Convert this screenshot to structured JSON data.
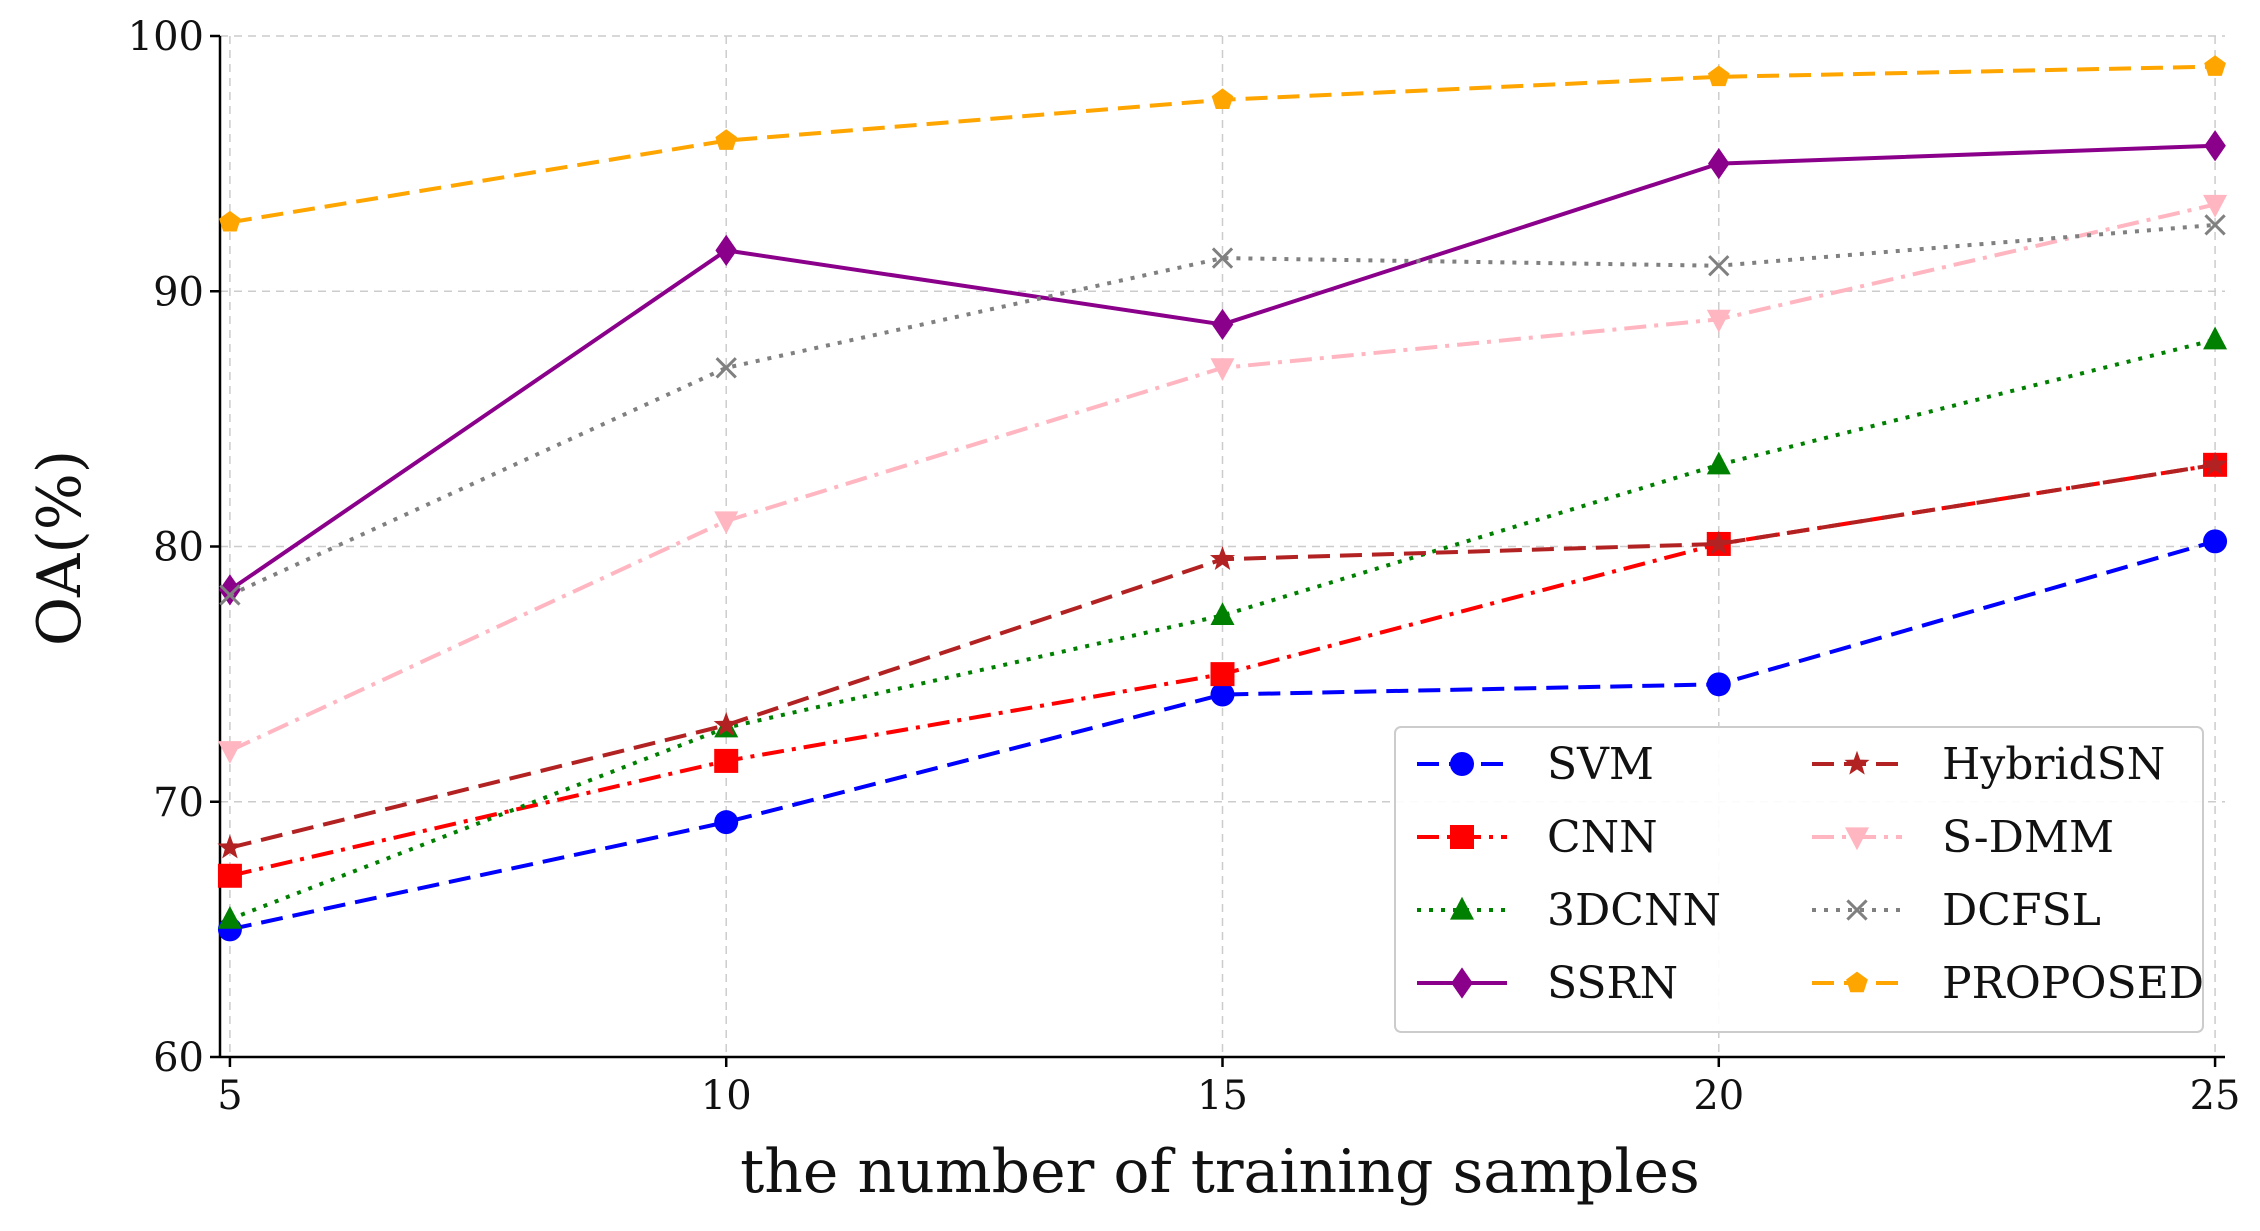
{
  "chart_data": {
    "type": "line",
    "title": "",
    "xlabel": "the number of training samples",
    "ylabel": "OA(%)",
    "x": [
      5,
      10,
      15,
      20,
      25
    ],
    "xticks": [
      "5",
      "10",
      "15",
      "20",
      "25"
    ],
    "yticks": [
      "60",
      "70",
      "80",
      "90",
      "100"
    ],
    "xlim": [
      4.9,
      25.1
    ],
    "ylim": [
      60,
      100
    ],
    "grid": true,
    "legend_position": "lower-right",
    "series": [
      {
        "name": "SVM",
        "values": [
          65.0,
          69.2,
          74.2,
          74.6,
          80.2
        ],
        "color": "#0000ff",
        "dash": "dashed",
        "marker": "circle"
      },
      {
        "name": "CNN",
        "values": [
          67.1,
          71.6,
          75.0,
          80.1,
          83.2
        ],
        "color": "#ff0000",
        "dash": "dashdot",
        "marker": "square"
      },
      {
        "name": "3DCNN",
        "values": [
          65.4,
          72.9,
          77.3,
          83.2,
          88.1
        ],
        "color": "#008000",
        "dash": "dotted",
        "marker": "triangle-up"
      },
      {
        "name": "SSRN",
        "values": [
          78.3,
          91.6,
          88.7,
          95.0,
          95.7
        ],
        "color": "#8b008b",
        "dash": "solid",
        "marker": "diamond"
      },
      {
        "name": "HybridSN",
        "values": [
          68.2,
          73.0,
          79.5,
          80.1,
          83.2
        ],
        "color": "#b22222",
        "dash": "dashed",
        "marker": "star"
      },
      {
        "name": "S-DMM",
        "values": [
          72.0,
          81.0,
          87.0,
          88.9,
          93.4
        ],
        "color": "#ffb6c1",
        "dash": "dashdot",
        "marker": "triangle-down"
      },
      {
        "name": "DCFSL",
        "values": [
          78.1,
          87.0,
          91.3,
          91.0,
          92.6
        ],
        "color": "#808080",
        "dash": "dotted",
        "marker": "x"
      },
      {
        "name": "PROPOSED",
        "values": [
          92.7,
          95.9,
          97.5,
          98.4,
          98.8
        ],
        "color": "#ffa500",
        "dash": "dashed",
        "marker": "pentagon"
      }
    ]
  }
}
